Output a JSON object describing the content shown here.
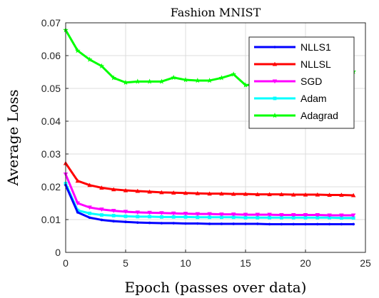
{
  "chart_data": {
    "type": "line",
    "title": "Fashion MNIST",
    "xlabel": "Epoch (passes over data)",
    "ylabel": "Average Loss",
    "xlim": [
      0,
      25
    ],
    "ylim": [
      0,
      0.07
    ],
    "xticks": [
      "0",
      "5",
      "10",
      "15",
      "20",
      "25"
    ],
    "yticks": [
      "0",
      "0.01",
      "0.02",
      "0.03",
      "0.04",
      "0.05",
      "0.06",
      "0.07"
    ],
    "grid": true,
    "legend_position": "top-right",
    "x": [
      0,
      1,
      2,
      3,
      4,
      5,
      6,
      7,
      8,
      9,
      10,
      11,
      12,
      13,
      14,
      15,
      16,
      17,
      18,
      19,
      20,
      21,
      22,
      23,
      24
    ],
    "series": [
      {
        "name": "NLLS1",
        "color": "#0000ff",
        "marker": "dot",
        "values": [
          0.0205,
          0.0122,
          0.0106,
          0.0099,
          0.0095,
          0.0093,
          0.0091,
          0.009,
          0.0089,
          0.0089,
          0.0088,
          0.0088,
          0.0087,
          0.0087,
          0.0087,
          0.0087,
          0.0087,
          0.0086,
          0.0086,
          0.0086,
          0.0086,
          0.0086,
          0.0086,
          0.0086,
          0.0086
        ]
      },
      {
        "name": "NLLSL",
        "color": "#ff0000",
        "marker": "triangle",
        "values": [
          0.0272,
          0.0218,
          0.0205,
          0.0197,
          0.0192,
          0.0189,
          0.0187,
          0.0185,
          0.0183,
          0.0182,
          0.0181,
          0.018,
          0.0179,
          0.0179,
          0.0178,
          0.0178,
          0.0177,
          0.0177,
          0.0177,
          0.0176,
          0.0176,
          0.0176,
          0.0175,
          0.0175,
          0.0174
        ]
      },
      {
        "name": "SGD",
        "color": "#ff00ff",
        "marker": "down-triangle",
        "values": [
          0.0238,
          0.015,
          0.0137,
          0.0131,
          0.0127,
          0.0124,
          0.0122,
          0.0121,
          0.012,
          0.0119,
          0.0118,
          0.0117,
          0.0117,
          0.0116,
          0.0116,
          0.0115,
          0.0115,
          0.0115,
          0.0114,
          0.0114,
          0.0114,
          0.0114,
          0.0113,
          0.0113,
          0.0113
        ]
      },
      {
        "name": "Adam",
        "color": "#00ffff",
        "marker": "square",
        "values": [
          0.021,
          0.0128,
          0.0119,
          0.0114,
          0.0112,
          0.011,
          0.0109,
          0.0109,
          0.0108,
          0.0108,
          0.0108,
          0.0107,
          0.0107,
          0.0107,
          0.0107,
          0.0106,
          0.0106,
          0.0106,
          0.0106,
          0.0106,
          0.0106,
          0.0106,
          0.0106,
          0.0105,
          0.0105
        ]
      },
      {
        "name": "Adagrad",
        "color": "#00ff00",
        "marker": "star",
        "values": [
          0.0678,
          0.0615,
          0.0588,
          0.0568,
          0.0532,
          0.0518,
          0.0521,
          0.0521,
          0.0521,
          0.0533,
          0.0526,
          0.0524,
          0.0524,
          0.0532,
          0.0543,
          0.051,
          0.0512,
          0.0515,
          0.0518,
          0.052,
          0.0524,
          0.053,
          0.0535,
          0.0542,
          0.0551
        ]
      }
    ]
  }
}
